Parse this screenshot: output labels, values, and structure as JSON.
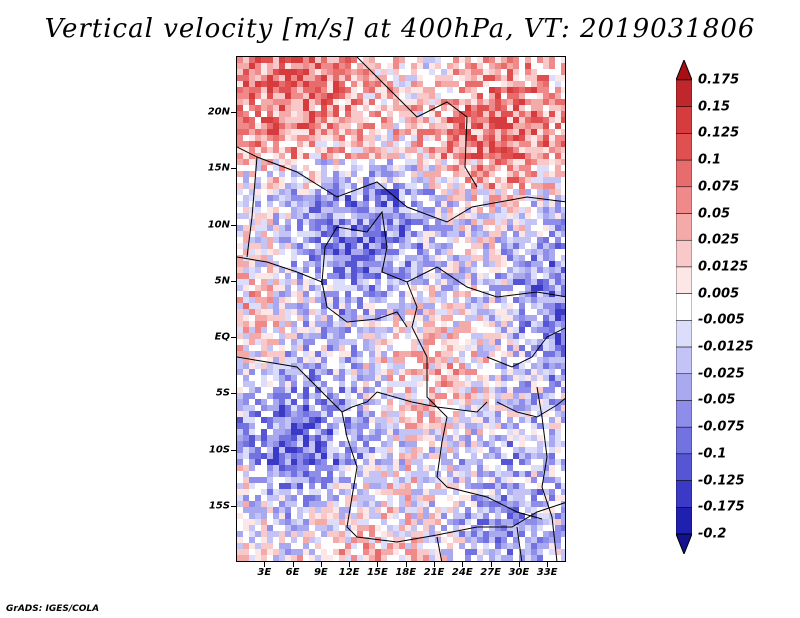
{
  "title": "Vertical velocity [m/s] at 400hPa, VT: 2019031806",
  "credit": "GrADS: IGES/COLA",
  "map": {
    "lat_labels": [
      "20N",
      "15N",
      "10N",
      "5N",
      "EQ",
      "5S",
      "10S",
      "15S"
    ],
    "lat_values": [
      20,
      15,
      10,
      5,
      0,
      -5,
      -10,
      -15
    ],
    "lon_labels": [
      "3E",
      "6E",
      "9E",
      "12E",
      "15E",
      "18E",
      "21E",
      "24E",
      "27E",
      "30E",
      "33E"
    ],
    "lon_values": [
      3,
      6,
      9,
      12,
      15,
      18,
      21,
      24,
      27,
      30,
      33
    ],
    "lat_range": [
      -20,
      25
    ],
    "lon_range": [
      0,
      35
    ]
  },
  "colorbar": {
    "labels": [
      "0.175",
      "0.15",
      "0.125",
      "0.1",
      "0.075",
      "0.05",
      "0.025",
      "0.0125",
      "0.005",
      "-0.005",
      "-0.0125",
      "-0.025",
      "-0.05",
      "-0.075",
      "-0.1",
      "-0.125",
      "-0.175",
      "-0.2"
    ],
    "colors": [
      "#a50f15",
      "#c0272d",
      "#d63b3e",
      "#e05050",
      "#e86c6c",
      "#f08a8a",
      "#f5aaaa",
      "#f9c9c9",
      "#fde6e6",
      "#ffffff",
      "#dcdcfb",
      "#c3c3f6",
      "#a9a9f0",
      "#8e8eea",
      "#7272e0",
      "#5656d4",
      "#3a3ac6",
      "#2020b0",
      "#12128f"
    ]
  }
}
